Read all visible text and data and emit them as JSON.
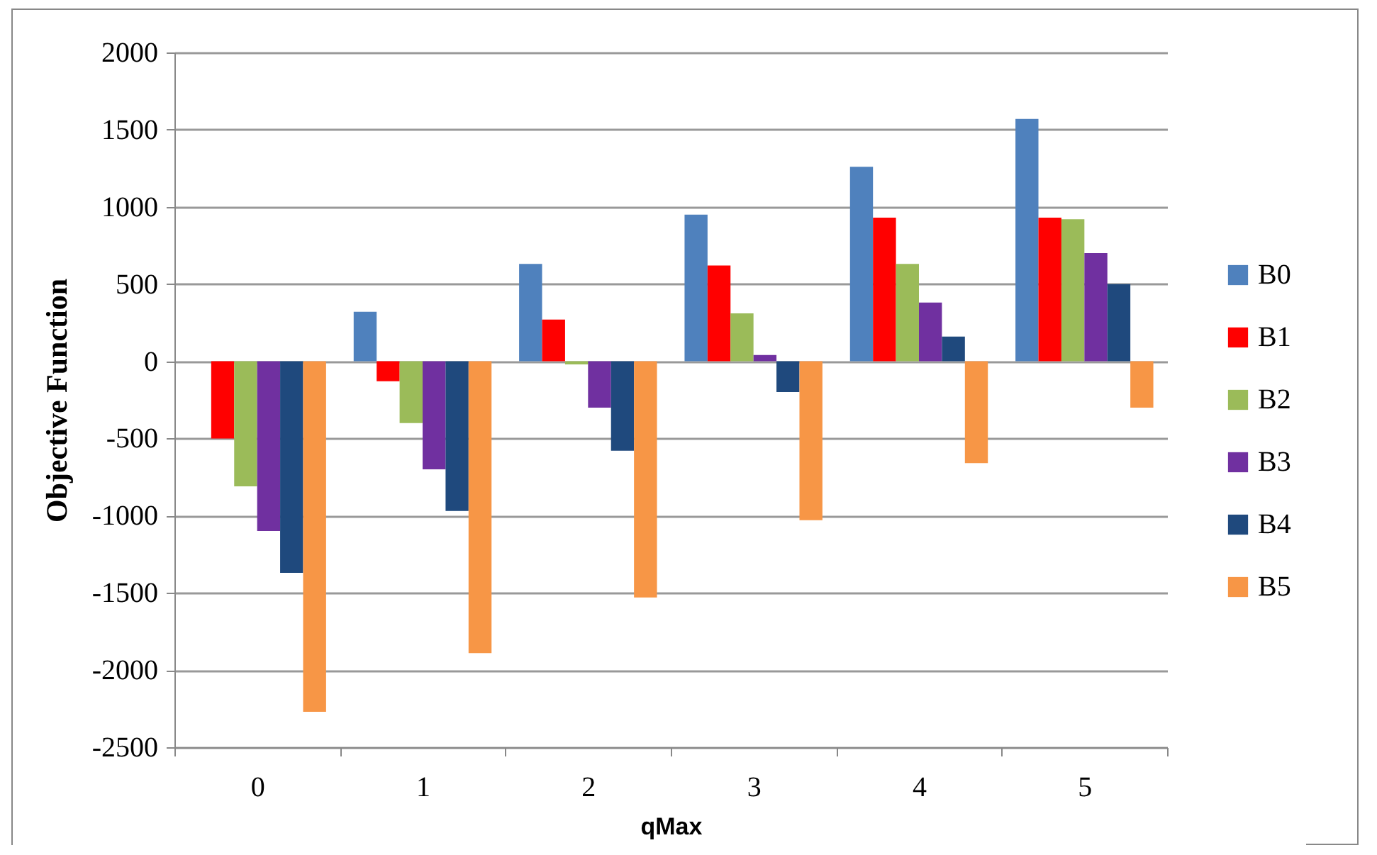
{
  "chart_data": {
    "type": "bar",
    "xlabel": "qMax",
    "ylabel": "Objective  Function",
    "categories": [
      "0",
      "1",
      "2",
      "3",
      "4",
      "5"
    ],
    "series": [
      {
        "name": "B0",
        "color": "#4f81bd",
        "values": [
          0,
          320,
          630,
          950,
          1260,
          1570
        ]
      },
      {
        "name": "B1",
        "color": "#ff0000",
        "values": [
          -500,
          -130,
          270,
          620,
          930,
          930
        ]
      },
      {
        "name": "B2",
        "color": "#9bbb59",
        "values": [
          -810,
          -400,
          -20,
          310,
          630,
          920
        ]
      },
      {
        "name": "B3",
        "color": "#7030a0",
        "values": [
          -1100,
          -700,
          -300,
          40,
          380,
          700
        ]
      },
      {
        "name": "B4",
        "color": "#1f497d",
        "values": [
          -1370,
          -970,
          -580,
          -200,
          160,
          500
        ]
      },
      {
        "name": "B5",
        "color": "#f79646",
        "values": [
          -2270,
          -1890,
          -1530,
          -1030,
          -660,
          -300
        ]
      }
    ],
    "ylim": [
      -2500,
      2000
    ],
    "yticks": [
      -2500,
      -2000,
      -1500,
      -1000,
      -500,
      0,
      500,
      1000,
      1500,
      2000
    ],
    "grid": "y",
    "legend": "right"
  }
}
